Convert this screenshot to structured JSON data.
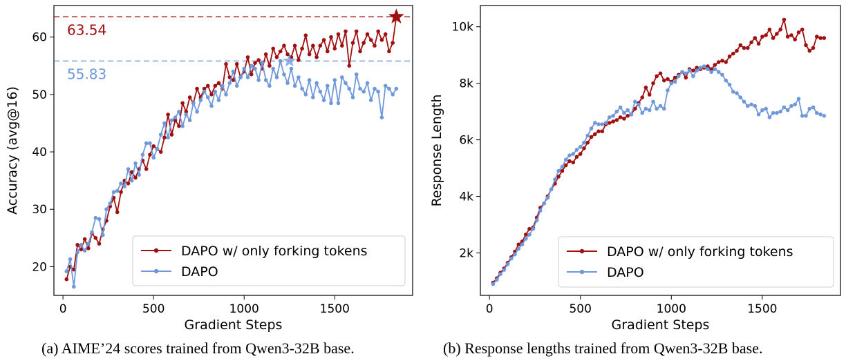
{
  "colors": {
    "dapo_fork": "#a01010",
    "dapo": "#6f98da"
  },
  "captions": {
    "a": "(a) AIME’24 scores trained from Qwen3-32B base.",
    "b": "(b) Response lengths trained from Qwen3-32B base."
  },
  "chart_data": [
    {
      "type": "line",
      "xlabel": "Gradient Steps",
      "ylabel": "Accuracy (avg@16)",
      "xlim": [
        -50,
        1930
      ],
      "ylim": [
        15,
        65.5
      ],
      "xticks": [
        0,
        500,
        1000,
        1500
      ],
      "xtick_labels": [
        "0",
        "500",
        "1000",
        "1500"
      ],
      "yticks": [
        20,
        30,
        40,
        50,
        60
      ],
      "ytick_labels": [
        "20",
        "30",
        "40",
        "50",
        "60"
      ],
      "legend_loc": "lower right",
      "grid": false,
      "reference_lines": [
        {
          "y": 63.54,
          "label": "63.54",
          "series": "DAPO w/ only forking tokens"
        },
        {
          "y": 55.83,
          "label": "55.83",
          "series": "DAPO"
        }
      ],
      "best_points": [
        {
          "series": "DAPO w/ only forking tokens",
          "x": 1840,
          "y": 63.54
        },
        {
          "series": "DAPO",
          "x": 1250,
          "y": 55.83
        }
      ],
      "series": [
        {
          "name": "DAPO w/ only forking tokens",
          "x": [
            20,
            40,
            60,
            80,
            100,
            120,
            140,
            160,
            180,
            200,
            220,
            240,
            260,
            280,
            300,
            320,
            340,
            360,
            380,
            400,
            420,
            440,
            460,
            480,
            500,
            520,
            540,
            560,
            580,
            600,
            620,
            640,
            660,
            680,
            700,
            720,
            740,
            760,
            780,
            800,
            820,
            840,
            860,
            880,
            900,
            920,
            940,
            960,
            980,
            1000,
            1020,
            1040,
            1060,
            1080,
            1100,
            1120,
            1140,
            1160,
            1180,
            1200,
            1220,
            1240,
            1260,
            1280,
            1300,
            1320,
            1340,
            1360,
            1380,
            1400,
            1420,
            1440,
            1460,
            1480,
            1500,
            1520,
            1540,
            1560,
            1580,
            1600,
            1620,
            1640,
            1660,
            1680,
            1700,
            1720,
            1740,
            1760,
            1780,
            1800,
            1820,
            1840
          ],
          "y": [
            17.8,
            20.0,
            19.5,
            23.8,
            23.0,
            24.8,
            23.2,
            25.8,
            25.0,
            24.0,
            26.5,
            28.0,
            30.5,
            32.0,
            29.5,
            33.0,
            35.0,
            34.5,
            36.5,
            35.5,
            37.0,
            38.5,
            37.0,
            39.5,
            41.0,
            40.5,
            40.0,
            42.5,
            46.5,
            43.0,
            45.5,
            44.5,
            48.5,
            47.0,
            49.5,
            48.5,
            51.0,
            49.5,
            51.0,
            51.5,
            50.0,
            51.5,
            52.0,
            51.0,
            55.3,
            53.0,
            52.5,
            55.3,
            53.0,
            54.0,
            56.5,
            53.5,
            55.5,
            56.0,
            54.5,
            57.0,
            55.0,
            58.0,
            56.5,
            57.5,
            58.5,
            57.0,
            56.5,
            58.5,
            56.0,
            58.0,
            60.3,
            57.0,
            58.5,
            56.5,
            58.5,
            59.5,
            57.5,
            60.0,
            58.0,
            60.5,
            58.5,
            61.0,
            55.0,
            59.0,
            61.0,
            57.5,
            59.0,
            60.5,
            59.5,
            58.5,
            61.0,
            59.5,
            60.5,
            57.5,
            59.0,
            63.54
          ]
        },
        {
          "name": "DAPO",
          "x": [
            20,
            40,
            60,
            80,
            100,
            120,
            140,
            160,
            180,
            200,
            220,
            240,
            260,
            280,
            300,
            320,
            340,
            360,
            380,
            400,
            420,
            440,
            460,
            480,
            500,
            520,
            540,
            560,
            580,
            600,
            620,
            640,
            660,
            680,
            700,
            720,
            740,
            760,
            780,
            800,
            820,
            840,
            860,
            880,
            900,
            920,
            940,
            960,
            980,
            1000,
            1020,
            1040,
            1060,
            1080,
            1100,
            1120,
            1140,
            1160,
            1180,
            1200,
            1220,
            1240,
            1260,
            1280,
            1300,
            1320,
            1340,
            1360,
            1380,
            1400,
            1420,
            1440,
            1460,
            1480,
            1500,
            1520,
            1540,
            1560,
            1580,
            1600,
            1620,
            1640,
            1660,
            1680,
            1700,
            1720,
            1740,
            1760,
            1780,
            1800,
            1820,
            1840
          ],
          "y": [
            19.2,
            21.3,
            16.5,
            22.5,
            23.8,
            22.8,
            24.0,
            26.0,
            28.5,
            28.3,
            25.5,
            30.0,
            31.0,
            33.0,
            33.2,
            34.5,
            34.0,
            37.0,
            35.0,
            38.0,
            36.0,
            39.5,
            41.5,
            41.5,
            39.0,
            40.5,
            43.0,
            45.0,
            42.5,
            45.5,
            46.0,
            47.0,
            44.5,
            46.5,
            45.5,
            48.5,
            47.0,
            49.0,
            50.5,
            49.5,
            48.0,
            50.5,
            49.0,
            51.5,
            50.0,
            52.0,
            54.0,
            51.5,
            53.0,
            54.5,
            53.0,
            55.0,
            54.5,
            52.5,
            55.5,
            52.5,
            51.5,
            54.5,
            53.0,
            55.83,
            53.5,
            52.0,
            54.5,
            51.5,
            53.0,
            51.0,
            50.0,
            52.5,
            49.5,
            52.0,
            50.5,
            49.0,
            51.5,
            48.5,
            52.5,
            48.5,
            53.0,
            52.0,
            51.0,
            49.5,
            53.5,
            51.0,
            50.5,
            52.0,
            49.0,
            51.0,
            50.5,
            46.0,
            51.5,
            51.0,
            50.0,
            51.0
          ]
        }
      ]
    },
    {
      "type": "line",
      "xlabel": "Gradient Steps",
      "ylabel": "Response Length",
      "xlim": [
        -50,
        1930
      ],
      "ylim": [
        500,
        10750
      ],
      "xticks": [
        0,
        500,
        1000,
        1500
      ],
      "xtick_labels": [
        "0",
        "500",
        "1000",
        "1500"
      ],
      "yticks": [
        2000,
        4000,
        6000,
        8000,
        10000
      ],
      "ytick_labels": [
        "2k",
        "4k",
        "6k",
        "8k",
        "10k"
      ],
      "legend_loc": "lower right",
      "grid": false,
      "series": [
        {
          "name": "DAPO w/ only forking tokens",
          "x": [
            20,
            40,
            60,
            80,
            100,
            120,
            140,
            160,
            180,
            200,
            220,
            240,
            260,
            280,
            300,
            320,
            340,
            360,
            380,
            400,
            420,
            440,
            460,
            480,
            500,
            520,
            540,
            560,
            580,
            600,
            620,
            640,
            660,
            680,
            700,
            720,
            740,
            760,
            780,
            800,
            820,
            840,
            860,
            880,
            900,
            920,
            940,
            960,
            980,
            1000,
            1020,
            1040,
            1060,
            1080,
            1100,
            1120,
            1140,
            1160,
            1180,
            1200,
            1220,
            1240,
            1260,
            1280,
            1300,
            1320,
            1340,
            1360,
            1380,
            1400,
            1420,
            1440,
            1460,
            1480,
            1500,
            1520,
            1540,
            1560,
            1580,
            1600,
            1620,
            1640,
            1660,
            1680,
            1700,
            1720,
            1740,
            1760,
            1780,
            1800,
            1820,
            1840
          ],
          "y": [
            950,
            1100,
            1300,
            1450,
            1650,
            1850,
            2050,
            2300,
            2400,
            2650,
            2850,
            2900,
            3250,
            3600,
            3750,
            4000,
            4250,
            4450,
            4700,
            4900,
            5100,
            5250,
            5200,
            5400,
            5500,
            5700,
            5900,
            6100,
            6200,
            6300,
            6300,
            6550,
            6600,
            6650,
            6700,
            6800,
            6750,
            6850,
            6900,
            7100,
            7300,
            7500,
            7850,
            7600,
            8000,
            8250,
            8350,
            8100,
            8150,
            8050,
            8200,
            8300,
            8400,
            8200,
            8500,
            8450,
            8550,
            8500,
            8550,
            8600,
            8500,
            8650,
            8750,
            8800,
            8750,
            8950,
            9050,
            9150,
            9350,
            9250,
            9250,
            9450,
            9600,
            9400,
            9650,
            9700,
            9900,
            9600,
            9750,
            9900,
            10250,
            9650,
            9700,
            9550,
            9800,
            9900,
            9350,
            9150,
            9250,
            9650,
            9600,
            9600
          ]
        },
        {
          "name": "DAPO",
          "x": [
            20,
            40,
            60,
            80,
            100,
            120,
            140,
            160,
            180,
            200,
            220,
            240,
            260,
            280,
            300,
            320,
            340,
            360,
            380,
            400,
            420,
            440,
            460,
            480,
            500,
            520,
            540,
            560,
            580,
            600,
            620,
            640,
            660,
            680,
            700,
            720,
            740,
            760,
            780,
            800,
            820,
            840,
            860,
            880,
            900,
            920,
            940,
            960,
            980,
            1000,
            1020,
            1040,
            1060,
            1080,
            1100,
            1120,
            1140,
            1160,
            1180,
            1200,
            1220,
            1240,
            1260,
            1280,
            1300,
            1320,
            1340,
            1360,
            1380,
            1400,
            1420,
            1440,
            1460,
            1480,
            1500,
            1520,
            1540,
            1560,
            1580,
            1600,
            1620,
            1640,
            1660,
            1680,
            1700,
            1720,
            1740,
            1760,
            1780,
            1800,
            1820,
            1840
          ],
          "y": [
            900,
            1050,
            1250,
            1400,
            1600,
            1800,
            1950,
            2150,
            2300,
            2500,
            2650,
            2850,
            3150,
            3500,
            3750,
            3950,
            4250,
            4600,
            4900,
            5050,
            5300,
            5450,
            5500,
            5650,
            5750,
            5900,
            6150,
            6400,
            6600,
            6550,
            6550,
            6600,
            6800,
            6850,
            7000,
            7150,
            6950,
            7050,
            6900,
            7350,
            7250,
            6950,
            7100,
            7050,
            7350,
            7100,
            7200,
            7100,
            7750,
            8000,
            8050,
            8250,
            8400,
            8350,
            8450,
            8250,
            8450,
            8550,
            8600,
            8500,
            8400,
            8500,
            8400,
            8300,
            8100,
            7950,
            7700,
            7650,
            7500,
            7350,
            7200,
            7250,
            7200,
            6900,
            7050,
            7100,
            6800,
            6950,
            6950,
            7000,
            7150,
            7050,
            7200,
            7250,
            7450,
            6850,
            6850,
            7100,
            7150,
            6950,
            6900,
            6850
          ]
        }
      ]
    }
  ]
}
